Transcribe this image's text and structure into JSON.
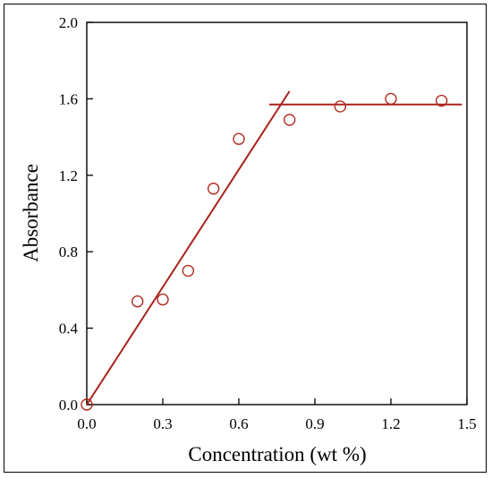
{
  "chart_data": {
    "type": "scatter",
    "xlabel": "Concentration (wt %)",
    "ylabel": "Absorbance",
    "xlim": [
      0.0,
      1.5
    ],
    "ylim": [
      0.0,
      2.0
    ],
    "x_ticks": [
      0.0,
      0.3,
      0.6,
      0.9,
      1.2,
      1.5
    ],
    "y_ticks": [
      0.0,
      0.4,
      0.8,
      1.2,
      1.6,
      2.0
    ],
    "x_tick_labels": [
      "0.0",
      "0.3",
      "0.6",
      "0.9",
      "1.2",
      "1.5"
    ],
    "y_tick_labels": [
      "0.0",
      "0.4",
      "0.8",
      "1.2",
      "1.6",
      "2.0"
    ],
    "grid": false,
    "marker_color": "#b22a1e",
    "line_color": "#a8231b",
    "series": [
      {
        "x": [
          0.0,
          0.2,
          0.3,
          0.4,
          0.5,
          0.6,
          0.8,
          1.0,
          1.2,
          1.4
        ],
        "y": [
          0.0,
          0.54,
          0.55,
          0.7,
          1.13,
          1.39,
          1.49,
          1.56,
          1.6,
          1.59
        ]
      }
    ],
    "fit_lines": [
      {
        "x": [
          0.0,
          0.8
        ],
        "y": [
          0.0,
          1.64
        ]
      },
      {
        "x": [
          0.72,
          1.48
        ],
        "y": [
          1.57,
          1.57
        ]
      }
    ]
  }
}
